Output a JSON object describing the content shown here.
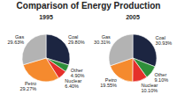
{
  "title": "Comparison of Energy Production",
  "chart_data": [
    {
      "type": "pie",
      "title": "1995",
      "categories": [
        "Coal",
        "Other",
        "Nuclear",
        "Petro",
        "Gas"
      ],
      "values": [
        29.8,
        4.9,
        6.4,
        29.27,
        29.63
      ],
      "value_labels": [
        "29.80%",
        "4.90%",
        "6.40%",
        "29.27%",
        "29.63%"
      ],
      "colors": [
        "#1c2541",
        "#2f8f3a",
        "#e5302a",
        "#f58a2e",
        "#b3b3b3"
      ],
      "data_labels": true
    },
    {
      "type": "pie",
      "title": "2005",
      "categories": [
        "Coal",
        "Other",
        "Nuclear",
        "Petro",
        "Gas"
      ],
      "values": [
        30.93,
        9.1,
        10.1,
        19.55,
        30.31
      ],
      "value_labels": [
        "30.93%",
        "9.10%",
        "10.10%",
        "19.55%",
        "30.31%"
      ],
      "colors": [
        "#1c2541",
        "#2f8f3a",
        "#e5302a",
        "#f58a2e",
        "#b3b3b3"
      ],
      "data_labels": true
    }
  ]
}
